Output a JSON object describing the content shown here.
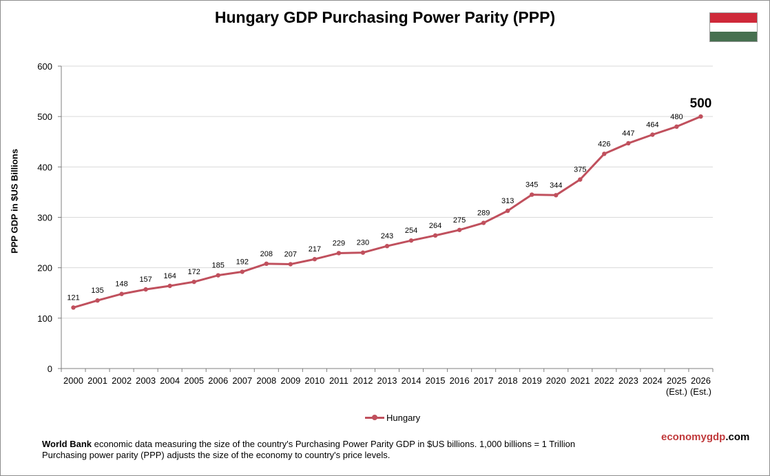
{
  "title": "Hungary GDP Purchasing Power Parity (PPP)",
  "ylabel": "PPP GDP in $US Billions",
  "legend": {
    "label": "Hungary"
  },
  "footnote": {
    "bold": "World Bank",
    "line1_rest": " economic data measuring the size of the country's Purchasing Power Parity GDP in $US billions. 1,000 billions = 1 Trillion",
    "line2": "Purchasing power parity (PPP) adjusts the size of the economy to country's price levels."
  },
  "brand": {
    "part1": "economy",
    "part2": "gdp",
    "part3": ".com"
  },
  "flag": {
    "colors": [
      "#ce2939",
      "#ffffff",
      "#477050"
    ],
    "icon": "hungary-flag-icon"
  },
  "colors": {
    "series": "#c0505d",
    "grid": "#d9d9d9"
  },
  "chart_data": {
    "type": "line",
    "title": "Hungary GDP Purchasing Power Parity (PPP)",
    "xlabel": "",
    "ylabel": "PPP GDP in $US Billions",
    "ylim": [
      0,
      600
    ],
    "yticks": [
      0,
      100,
      200,
      300,
      400,
      500,
      600
    ],
    "grid": true,
    "legend": "bottom",
    "categories": [
      "2000",
      "2001",
      "2002",
      "2003",
      "2004",
      "2005",
      "2006",
      "2007",
      "2008",
      "2009",
      "2010",
      "2011",
      "2012",
      "2013",
      "2014",
      "2015",
      "2016",
      "2017",
      "2018",
      "2019",
      "2020",
      "2021",
      "2022",
      "2023",
      "2024",
      "2025",
      "2026"
    ],
    "category_sublabels": [
      "",
      "",
      "",
      "",
      "",
      "",
      "",
      "",
      "",
      "",
      "",
      "",
      "",
      "",
      "",
      "",
      "",
      "",
      "",
      "",
      "",
      "",
      "",
      "",
      "",
      "(Est.)",
      "(Est.)"
    ],
    "series": [
      {
        "name": "Hungary",
        "values": [
          121,
          135,
          148,
          157,
          164,
          172,
          185,
          192,
          208,
          207,
          217,
          229,
          230,
          243,
          254,
          264,
          275,
          289,
          313,
          345,
          344,
          375,
          426,
          447,
          464,
          480,
          500
        ]
      }
    ],
    "highlight_last": true
  }
}
